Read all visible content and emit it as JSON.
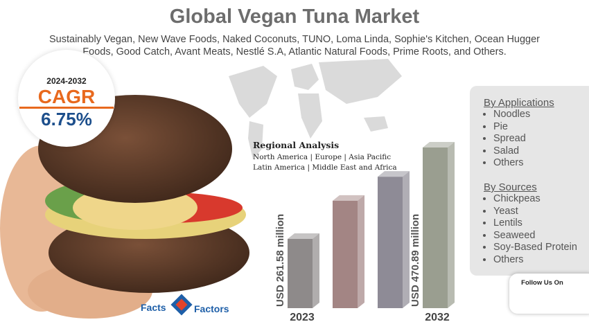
{
  "header": {
    "title": "Global Vegan Tuna Market",
    "subtitle": "Sustainably Vegan, New Wave Foods, Naked Coconuts, TUNO, Loma Linda, Sophie's Kitchen, Ocean Hugger Foods, Good Catch, Avant Meats, Nestlé S.A, Atlantic Natural Foods, Prime Roots, and Others."
  },
  "cagr": {
    "period": "2024-2032",
    "label": "CAGR",
    "value": "6.75%"
  },
  "regional": {
    "title": "Regional Analysis",
    "line1": "North America | Europe | Asia Pacific",
    "line2": "Latin America | Middle East and Africa"
  },
  "applications": {
    "title": "By Applications",
    "items": [
      "Noodles",
      "Pie",
      "Spread",
      "Salad",
      "Others"
    ]
  },
  "sources": {
    "title": "By Sources",
    "items": [
      "Chickpeas",
      "Yeast",
      "Lentils",
      "Seaweed",
      "Soy-Based Protein",
      "Others"
    ]
  },
  "follow": {
    "title": "Follow Us On"
  },
  "logo": {
    "left": "Facts",
    "right": "Factors"
  },
  "chart_data": {
    "type": "bar",
    "categories": [
      "2023",
      null,
      null,
      "2032"
    ],
    "values": [
      261.58,
      349,
      404,
      470.89
    ],
    "value_labels": [
      "USD 261.58 million",
      null,
      null,
      "USD 470.89 million"
    ],
    "colors": [
      "#8e8a8a",
      "#a38584",
      "#8e8b96",
      "#9a9e90"
    ]
  }
}
